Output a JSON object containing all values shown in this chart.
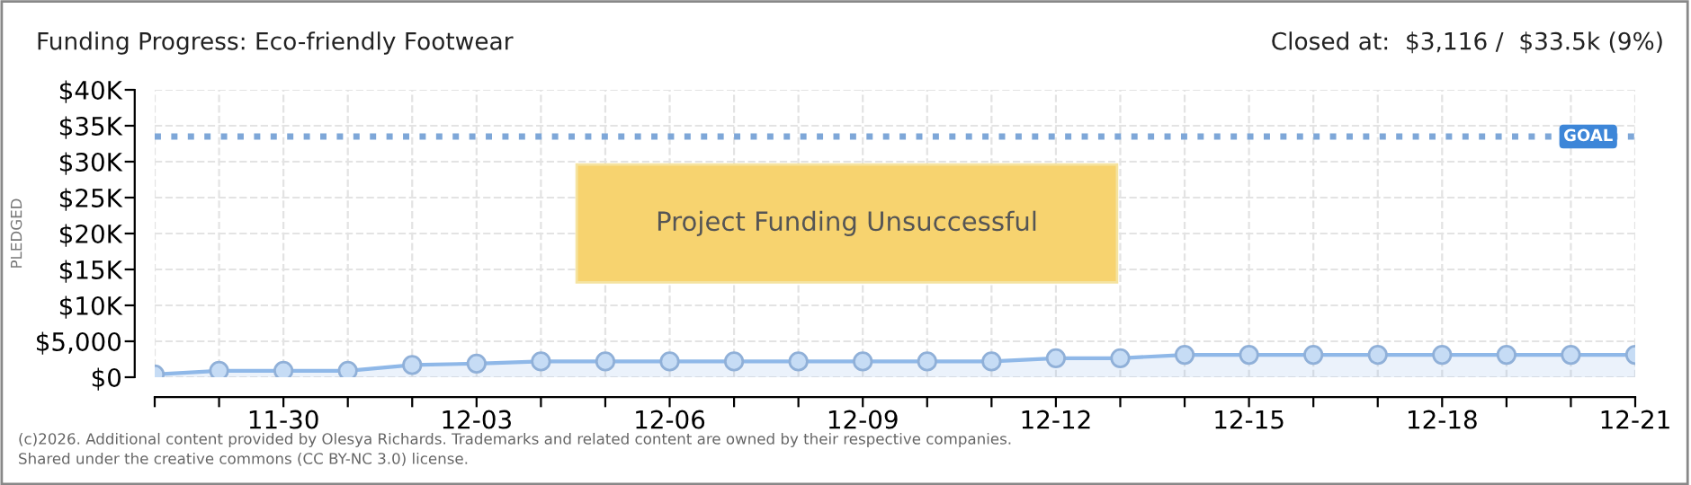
{
  "chart_data": {
    "type": "area",
    "title": "Funding Progress: Eco-friendly Footwear",
    "subtitle": "Closed at:  $3,116 /  $33.5k (9%)",
    "ylabel": "PLEDGED",
    "categories": [
      null,
      null,
      "11-30",
      null,
      null,
      "12-03",
      null,
      null,
      "12-06",
      null,
      null,
      "12-09",
      null,
      null,
      "12-12",
      null,
      null,
      "12-15",
      null,
      null,
      "12-18",
      null,
      null,
      "12-21"
    ],
    "series": [
      {
        "color": "#8fb8e8",
        "values": [
          400,
          900,
          900,
          900,
          1700,
          1900,
          2200,
          2200,
          2200,
          2200,
          2200,
          2200,
          2200,
          2200,
          2650,
          2650,
          3116,
          3116,
          3116,
          3116,
          3116,
          3116,
          3116,
          3116
        ]
      }
    ],
    "ylim": [
      0,
      40000
    ],
    "yticks": [
      {
        "value": 0,
        "label": "$0"
      },
      {
        "value": 5000,
        "label": "$5,000"
      },
      {
        "value": 10000,
        "label": "$10K"
      },
      {
        "value": 15000,
        "label": "$15K"
      },
      {
        "value": 20000,
        "label": "$20K"
      },
      {
        "value": 25000,
        "label": "$25K"
      },
      {
        "value": 30000,
        "label": "$30K"
      },
      {
        "value": 35000,
        "label": "$35K"
      },
      {
        "value": 40000,
        "label": "$40K"
      }
    ],
    "ref_lines": [
      {
        "axis": "y",
        "value": 33500,
        "label": "GOAL",
        "color": "#7ea7d8",
        "line_style": "dotted"
      }
    ],
    "annotations": [
      "Project Funding Unsuccessful",
      "(c)2026. Additional content provided by Olesya Richards. Trademarks and related content are owned by their respective companies.",
      "Shared under the creative commons (CC BY-NC 3.0) license."
    ],
    "grid": true,
    "marker": "circle",
    "line_style": "solid"
  }
}
